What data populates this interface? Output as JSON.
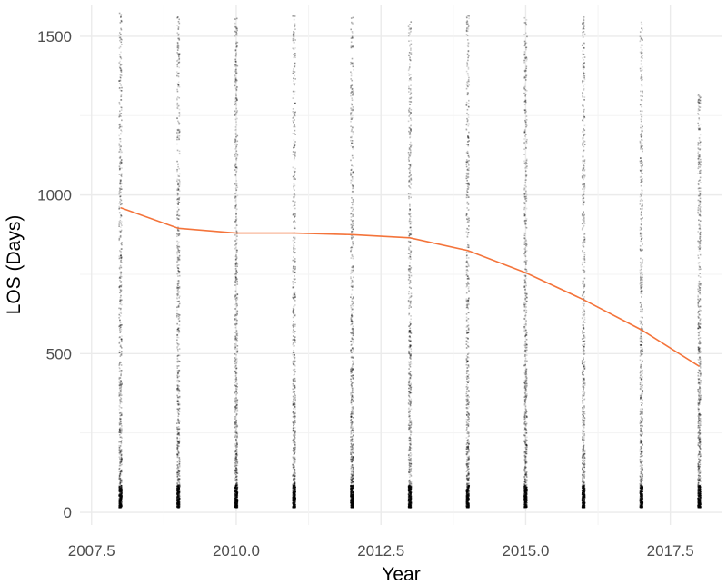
{
  "chart_data": {
    "type": "scatter",
    "title": "",
    "xlabel": "Year",
    "ylabel": "LOS (Days)",
    "xlim": [
      2007.3,
      2018.4
    ],
    "ylim": [
      -40,
      1600
    ],
    "x_ticks": [
      2007.5,
      2010.0,
      2012.5,
      2015.0,
      2017.5
    ],
    "x_tick_labels": [
      "2007.5",
      "2010.0",
      "2012.5",
      "2015.0",
      "2017.5"
    ],
    "y_ticks": [
      0,
      500,
      1000,
      1500
    ],
    "y_tick_labels": [
      "0",
      "500",
      "1000",
      "1500"
    ],
    "grid": true,
    "point_color": "#000000",
    "line_color": "#f4743b",
    "point_series": {
      "x": [
        2008,
        2009,
        2010,
        2011,
        2012,
        2013,
        2014,
        2015,
        2016,
        2017,
        2018
      ],
      "max_los": [
        1575,
        1570,
        1560,
        1565,
        1560,
        1560,
        1565,
        1570,
        1570,
        1555,
        1320
      ]
    },
    "series": [
      {
        "x": [
          2008,
          2009,
          2010,
          2011,
          2012,
          2013,
          2014,
          2015,
          2016,
          2017,
          2018
        ],
        "values": [
          960,
          895,
          880,
          880,
          875,
          865,
          825,
          755,
          670,
          575,
          460
        ]
      }
    ]
  }
}
